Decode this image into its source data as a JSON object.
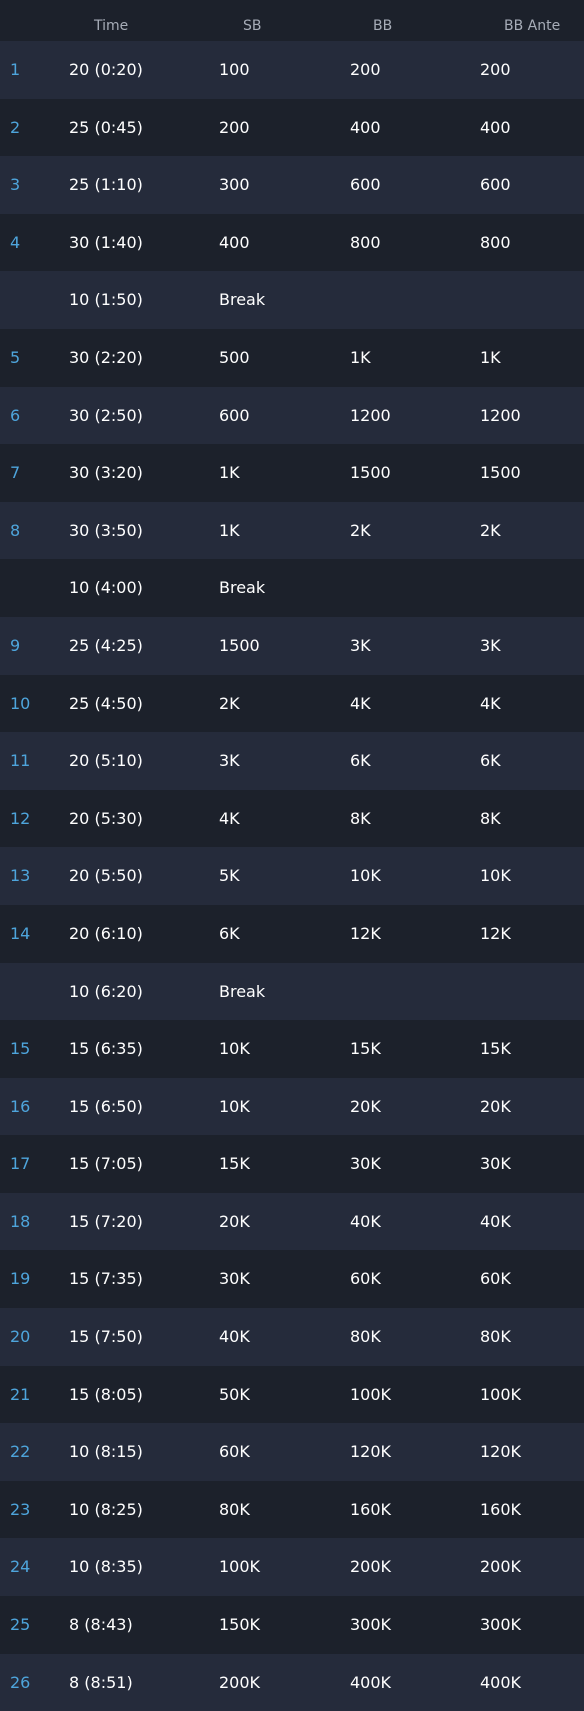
{
  "columns": {
    "time": "Time",
    "sb": "SB",
    "bb": "BB",
    "ante": "BB Ante"
  },
  "rows": [
    {
      "level": "1",
      "time": "20 (0:20)",
      "sb": "100",
      "bb": "200",
      "ante": "200"
    },
    {
      "level": "2",
      "time": "25 (0:45)",
      "sb": "200",
      "bb": "400",
      "ante": "400"
    },
    {
      "level": "3",
      "time": "25 (1:10)",
      "sb": "300",
      "bb": "600",
      "ante": "600"
    },
    {
      "level": "4",
      "time": "30 (1:40)",
      "sb": "400",
      "bb": "800",
      "ante": "800"
    },
    {
      "level": "",
      "time": "10 (1:50)",
      "sb": "Break",
      "bb": "",
      "ante": ""
    },
    {
      "level": "5",
      "time": "30 (2:20)",
      "sb": "500",
      "bb": "1K",
      "ante": "1K"
    },
    {
      "level": "6",
      "time": "30 (2:50)",
      "sb": "600",
      "bb": "1200",
      "ante": "1200"
    },
    {
      "level": "7",
      "time": "30 (3:20)",
      "sb": "1K",
      "bb": "1500",
      "ante": "1500"
    },
    {
      "level": "8",
      "time": "30 (3:50)",
      "sb": "1K",
      "bb": "2K",
      "ante": "2K"
    },
    {
      "level": "",
      "time": "10 (4:00)",
      "sb": "Break",
      "bb": "",
      "ante": ""
    },
    {
      "level": "9",
      "time": "25 (4:25)",
      "sb": "1500",
      "bb": "3K",
      "ante": "3K"
    },
    {
      "level": "10",
      "time": "25 (4:50)",
      "sb": "2K",
      "bb": "4K",
      "ante": "4K"
    },
    {
      "level": "11",
      "time": "20 (5:10)",
      "sb": "3K",
      "bb": "6K",
      "ante": "6K"
    },
    {
      "level": "12",
      "time": "20 (5:30)",
      "sb": "4K",
      "bb": "8K",
      "ante": "8K"
    },
    {
      "level": "13",
      "time": "20 (5:50)",
      "sb": "5K",
      "bb": "10K",
      "ante": "10K"
    },
    {
      "level": "14",
      "time": "20 (6:10)",
      "sb": "6K",
      "bb": "12K",
      "ante": "12K"
    },
    {
      "level": "",
      "time": "10 (6:20)",
      "sb": "Break",
      "bb": "",
      "ante": ""
    },
    {
      "level": "15",
      "time": "15 (6:35)",
      "sb": "10K",
      "bb": "15K",
      "ante": "15K"
    },
    {
      "level": "16",
      "time": "15 (6:50)",
      "sb": "10K",
      "bb": "20K",
      "ante": "20K"
    },
    {
      "level": "17",
      "time": "15 (7:05)",
      "sb": "15K",
      "bb": "30K",
      "ante": "30K"
    },
    {
      "level": "18",
      "time": "15 (7:20)",
      "sb": "20K",
      "bb": "40K",
      "ante": "40K"
    },
    {
      "level": "19",
      "time": "15 (7:35)",
      "sb": "30K",
      "bb": "60K",
      "ante": "60K"
    },
    {
      "level": "20",
      "time": "15 (7:50)",
      "sb": "40K",
      "bb": "80K",
      "ante": "80K"
    },
    {
      "level": "21",
      "time": "15 (8:05)",
      "sb": "50K",
      "bb": "100K",
      "ante": "100K"
    },
    {
      "level": "22",
      "time": "10 (8:15)",
      "sb": "60K",
      "bb": "120K",
      "ante": "120K"
    },
    {
      "level": "23",
      "time": "10 (8:25)",
      "sb": "80K",
      "bb": "160K",
      "ante": "160K"
    },
    {
      "level": "24",
      "time": "10 (8:35)",
      "sb": "100K",
      "bb": "200K",
      "ante": "200K"
    },
    {
      "level": "25",
      "time": "8 (8:43)",
      "sb": "150K",
      "bb": "300K",
      "ante": "300K"
    },
    {
      "level": "26",
      "time": "8 (8:51)",
      "sb": "200K",
      "bb": "400K",
      "ante": "400K"
    }
  ],
  "colors": {
    "background": "#1c212b",
    "row_alt": "#252b3b",
    "level_number": "#4ea5dc",
    "header_text": "#a7adb8",
    "cell_text": "#ffffff"
  }
}
